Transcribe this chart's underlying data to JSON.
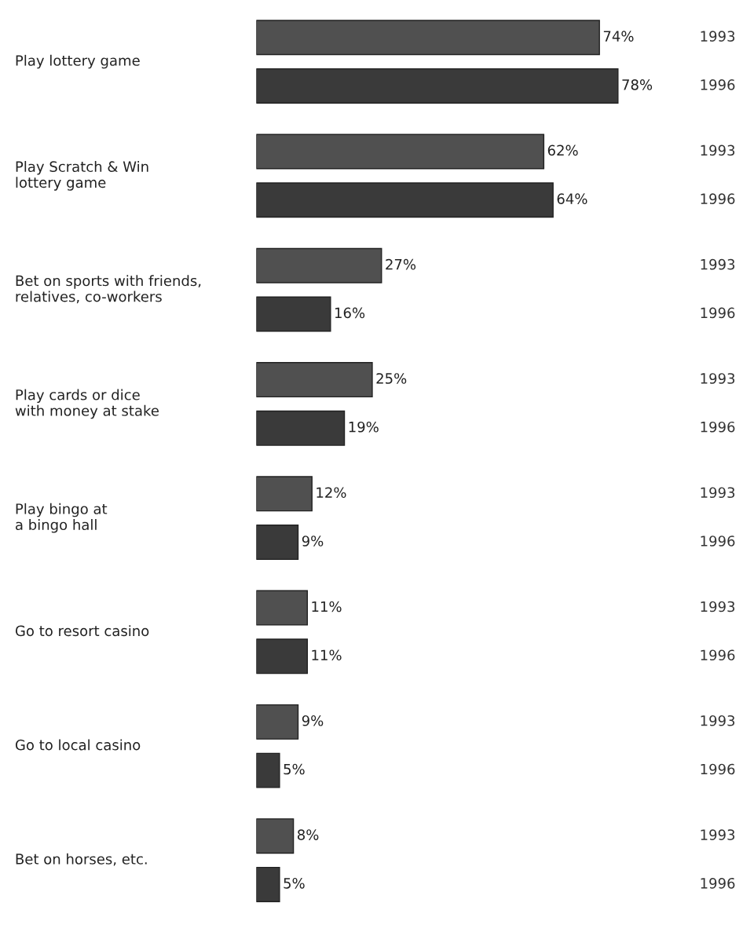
{
  "chart_data": {
    "type": "bar",
    "orientation": "horizontal",
    "categories": [
      "Play lottery game",
      "Play Scratch & Win\nlottery game",
      "Bet on sports with friends,\nrelatives, co-workers",
      "Play cards or dice\nwith money at stake",
      "Play bingo at\na bingo hall",
      "Go to resort casino",
      "Go to local casino",
      "Bet on horses, etc."
    ],
    "series": [
      {
        "name": "1993",
        "color": "#505050",
        "values": [
          74,
          62,
          27,
          25,
          12,
          11,
          9,
          8
        ],
        "value_labels": [
          "74%",
          "62%",
          "27%",
          "25%",
          "12%",
          "11%",
          "9%",
          "8%"
        ]
      },
      {
        "name": "1996",
        "color": "#3a3a3a",
        "values": [
          78,
          64,
          16,
          19,
          9,
          11,
          5,
          5
        ],
        "value_labels": [
          "78%",
          "64%",
          "16%",
          "19%",
          "9%",
          "11%",
          "5%",
          "5%"
        ]
      }
    ],
    "legend": false
  }
}
